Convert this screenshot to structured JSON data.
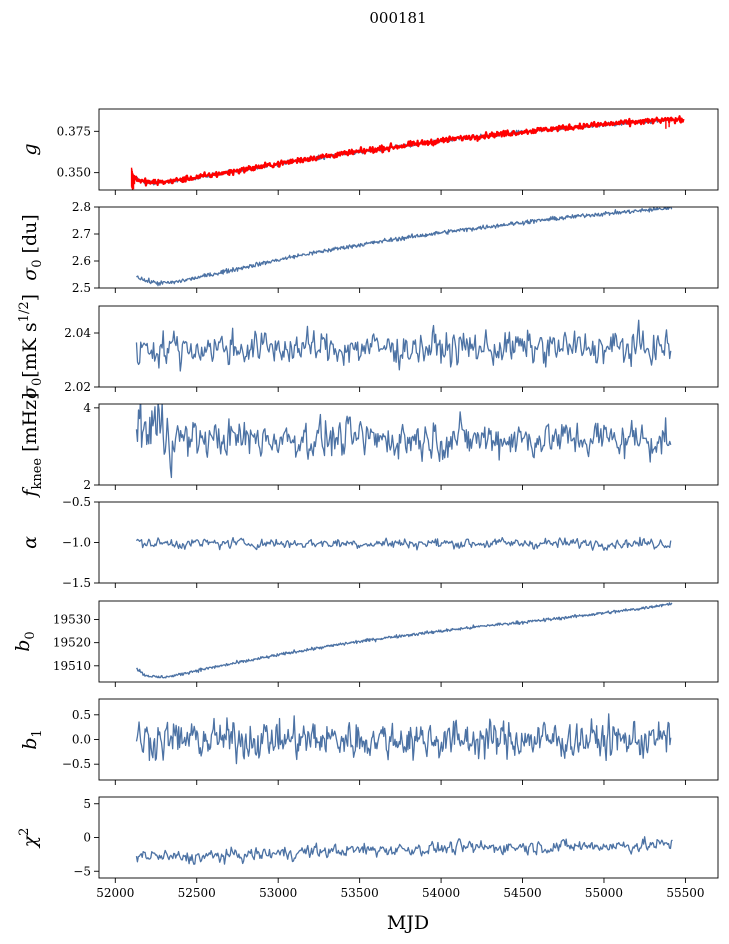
{
  "chart_data": {
    "type": "line",
    "title": "000181",
    "xlabel": "MJD",
    "xlim": [
      51900,
      55700
    ],
    "x_ticks": [
      "52000",
      "52500",
      "53000",
      "53500",
      "54000",
      "54500",
      "55000",
      "55500"
    ],
    "x_tick_values": [
      52000,
      52500,
      53000,
      53500,
      54000,
      54500,
      55000,
      55500
    ],
    "line_color": "#4c72a4",
    "highlight_color": "#ff0000",
    "panels": [
      {
        "id": "g",
        "ylabel_main": "g",
        "ylabel_sub": "",
        "ylim": [
          0.3395,
          0.3885
        ],
        "yticks": [
          0.35,
          0.375
        ],
        "ytick_labels": [
          "0.350",
          "0.375"
        ],
        "series": [
          {
            "kind": "trend",
            "x": [
              52120,
              52160,
              52230,
              52300,
              52400,
              52600,
              52900,
              53200,
              53500,
              53800,
              54100,
              54400,
              54700,
              55000,
              55300,
              55400
            ],
            "y": [
              0.3475,
              0.3445,
              0.3438,
              0.3442,
              0.3455,
              0.3485,
              0.3535,
              0.3585,
              0.3625,
              0.3665,
              0.3705,
              0.3735,
              0.3765,
              0.379,
              0.3812,
              0.3822
            ],
            "noise": 0.0006,
            "x_start": 52120,
            "x_end": 55410
          },
          {
            "kind": "trend",
            "x": [
              52100,
              52160,
              52230,
              52300,
              52400,
              52600,
              52900,
              53200,
              53500,
              53800,
              54100,
              54400,
              54700,
              55000,
              55300,
              55490
            ],
            "y": [
              0.348,
              0.3447,
              0.344,
              0.3444,
              0.3457,
              0.3487,
              0.3537,
              0.3587,
              0.3627,
              0.3667,
              0.3707,
              0.3737,
              0.3767,
              0.3792,
              0.3814,
              0.3822
            ],
            "noise": 0.0009,
            "x_start": 52100,
            "x_end": 55490,
            "color": "red",
            "width": 2.2
          },
          {
            "kind": "spikes",
            "x": [
              52100,
              52102,
              52104,
              52106,
              52108,
              52110,
              52112,
              52118,
              55380,
              55400
            ],
            "y_low": [
              0.3415,
              0.3405,
              0.3425,
              0.3395,
              0.342,
              0.344,
              0.34,
              0.343,
              0.3765,
              0.3775
            ],
            "y_high": [
              0.353,
              0.352,
              0.351,
              0.35,
              0.3495,
              0.349,
              0.3485,
              0.348,
              0.3828,
              0.383
            ],
            "color": "red"
          }
        ]
      },
      {
        "id": "sigma0_du",
        "ylabel_main": "σ",
        "ylabel_sub": "0",
        "ylabel_rest": " [du]",
        "ylim": [
          2.5,
          2.8
        ],
        "yticks": [
          2.5,
          2.6,
          2.7,
          2.8
        ],
        "ytick_labels": [
          "2.5",
          "2.6",
          "2.7",
          "2.8"
        ],
        "series": [
          {
            "kind": "trend",
            "x": [
              52130,
              52180,
              52260,
              52350,
              52500,
              52800,
              53100,
              53400,
              53700,
              54000,
              54300,
              54600,
              54900,
              55200,
              55420
            ],
            "y": [
              2.545,
              2.528,
              2.518,
              2.52,
              2.538,
              2.578,
              2.617,
              2.65,
              2.679,
              2.705,
              2.728,
              2.75,
              2.77,
              2.785,
              2.797
            ],
            "noise": 0.004,
            "x_start": 52130,
            "x_end": 55420
          }
        ]
      },
      {
        "id": "sigma0_mK",
        "ylabel_main": "σ",
        "ylabel_sub": "0",
        "ylabel_rest": "[mK s",
        "ylabel_sup": "1/2",
        "ylabel_end": "]",
        "ylim": [
          2.02,
          2.05
        ],
        "yticks": [
          2.02,
          2.04
        ],
        "ytick_labels": [
          "2.02",
          "2.04"
        ],
        "series": [
          {
            "kind": "noise",
            "mean": 2.0345,
            "amp": 0.0045,
            "x_start": 52130,
            "x_end": 55410,
            "n": 500
          }
        ]
      },
      {
        "id": "fknee",
        "ylabel_main": "f",
        "ylabel_sub": "knee",
        "ylabel_rest": " [mHz]",
        "ylim": [
          2,
          4.1
        ],
        "yticks": [
          2,
          4
        ],
        "ytick_labels": [
          "2",
          "4"
        ],
        "series": [
          {
            "kind": "noise",
            "mean": 3.2,
            "amp": 0.35,
            "x_start": 52130,
            "x_end": 55410,
            "n": 520,
            "start_boost": 0.55
          }
        ]
      },
      {
        "id": "alpha",
        "ylabel_main": "α",
        "ylabel_sub": "",
        "ylim": [
          -1.5,
          -0.5
        ],
        "yticks": [
          -1.5,
          -1.0,
          -0.5
        ],
        "ytick_labels": [
          "−1.5",
          "−1.0",
          "−0.5"
        ],
        "series": [
          {
            "kind": "noise",
            "mean": -1.01,
            "amp": 0.045,
            "x_start": 52130,
            "x_end": 55410,
            "n": 520
          }
        ]
      },
      {
        "id": "b0",
        "ylabel_main": "b",
        "ylabel_sub": "0",
        "ylim": [
          19503,
          19538
        ],
        "yticks": [
          19510,
          19520,
          19530
        ],
        "ytick_labels": [
          "19510",
          "19520",
          "19530"
        ],
        "series": [
          {
            "kind": "trend",
            "x": [
              52130,
              52180,
              52260,
              52350,
              52500,
              52800,
              53100,
              53400,
              53700,
              54000,
              54300,
              54600,
              54900,
              55200,
              55420
            ],
            "y": [
              19509,
              19506,
              19505,
              19505.5,
              19508,
              19512,
              19516,
              19519.5,
              19522.5,
              19525,
              19527.5,
              19529.5,
              19532,
              19534.5,
              19537
            ],
            "noise": 0.35,
            "x_start": 52130,
            "x_end": 55420
          }
        ]
      },
      {
        "id": "b1",
        "ylabel_main": "b",
        "ylabel_sub": "1",
        "ylim": [
          -0.82,
          0.82
        ],
        "yticks": [
          -0.5,
          0.0,
          0.5
        ],
        "ytick_labels": [
          "−0.5",
          "0.0",
          "0.5"
        ],
        "series": [
          {
            "kind": "noise",
            "mean": 0.0,
            "amp": 0.27,
            "x_start": 52130,
            "x_end": 55410,
            "n": 620
          }
        ]
      },
      {
        "id": "chi2",
        "ylabel_main": "χ",
        "ylabel_sup": "2",
        "ylim": [
          -6,
          6
        ],
        "yticks": [
          -5,
          0,
          5
        ],
        "ytick_labels": [
          "−5",
          "0",
          "5"
        ],
        "series": [
          {
            "kind": "trend_noise",
            "x": [
              52130,
              52400,
              52800,
              53200,
              53600,
              54000,
              54400,
              54800,
              55200,
              55420
            ],
            "y": [
              -2.6,
              -3.0,
              -2.6,
              -2.1,
              -1.8,
              -1.6,
              -1.4,
              -1.3,
              -1.2,
              -1.0
            ],
            "noise": 0.75,
            "x_start": 52130,
            "x_end": 55420,
            "n": 560
          }
        ]
      }
    ]
  }
}
